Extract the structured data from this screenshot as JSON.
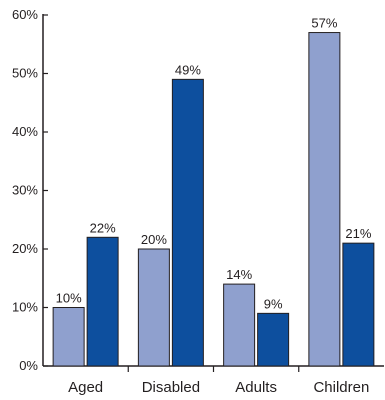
{
  "chart_data": {
    "type": "bar",
    "categories": [
      "Aged",
      "Disabled",
      "Adults",
      "Children"
    ],
    "series": [
      {
        "values": [
          10,
          20,
          14,
          57
        ],
        "color": "#8fa0ce",
        "labels": [
          "10%",
          "20%",
          "14%",
          "57%"
        ]
      },
      {
        "values": [
          22,
          49,
          9,
          21
        ],
        "color": "#0d4f9e",
        "labels": [
          "22%",
          "49%",
          "9%",
          "21%"
        ]
      }
    ],
    "ylim": [
      0,
      60
    ],
    "yticks": [
      0,
      10,
      20,
      30,
      40,
      50,
      60
    ],
    "ytick_labels": [
      "0%",
      "10%",
      "20%",
      "30%",
      "40%",
      "50%",
      "60%"
    ],
    "grid": false,
    "legend": "none"
  }
}
